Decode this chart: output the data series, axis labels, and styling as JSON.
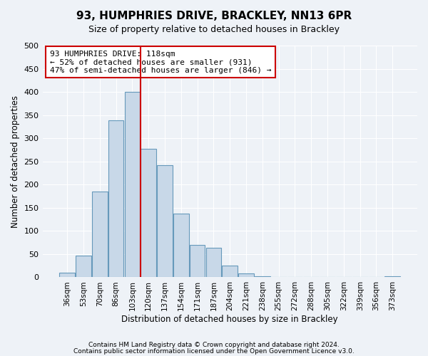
{
  "title": "93, HUMPHRIES DRIVE, BRACKLEY, NN13 6PR",
  "subtitle": "Size of property relative to detached houses in Brackley",
  "xlabel": "Distribution of detached houses by size in Brackley",
  "ylabel": "Number of detached properties",
  "bar_color": "#c8d8e8",
  "bar_edge_color": "#6699bb",
  "categories": [
    "36sqm",
    "53sqm",
    "70sqm",
    "86sqm",
    "103sqm",
    "120sqm",
    "137sqm",
    "154sqm",
    "171sqm",
    "187sqm",
    "204sqm",
    "221sqm",
    "238sqm",
    "255sqm",
    "272sqm",
    "288sqm",
    "305sqm",
    "322sqm",
    "339sqm",
    "356sqm",
    "373sqm"
  ],
  "values": [
    10,
    47,
    185,
    338,
    400,
    278,
    242,
    137,
    70,
    63,
    26,
    8,
    2,
    0,
    0,
    0,
    0,
    0,
    0,
    0,
    2
  ],
  "ylim": [
    0,
    500
  ],
  "yticks": [
    0,
    50,
    100,
    150,
    200,
    250,
    300,
    350,
    400,
    450,
    500
  ],
  "vline_pos": 4.5,
  "annotation_title": "93 HUMPHRIES DRIVE: 118sqm",
  "annotation_line1": "← 52% of detached houses are smaller (931)",
  "annotation_line2": "47% of semi-detached houses are larger (846) →",
  "vline_color": "#cc0000",
  "annotation_box_edge_color": "#cc0000",
  "footer_line1": "Contains HM Land Registry data © Crown copyright and database right 2024.",
  "footer_line2": "Contains public sector information licensed under the Open Government Licence v3.0.",
  "background_color": "#eef2f7",
  "plot_bg_color": "#eef2f7"
}
